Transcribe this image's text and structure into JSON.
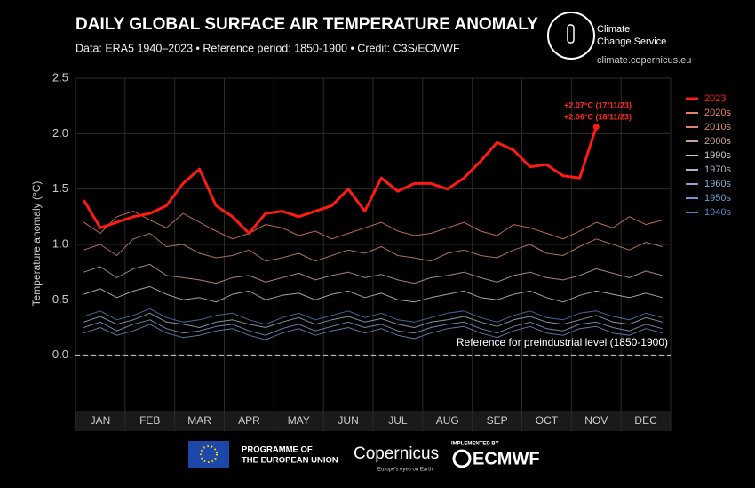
{
  "chart_data": {
    "type": "line",
    "title": "DAILY GLOBAL SURFACE AIR TEMPERATURE ANOMALY",
    "subtitle": "Data: ERA5 1940–2023 • Reference period: 1850-1900 • Credit: C3S/ECMWF",
    "y_label": "Temperature anomaly (°C)",
    "reference_label": "Reference for preindustrial level (1850-1900)",
    "annotations": [
      "+2.07°C (17/11/23)",
      "+2.06°C (18/11/23)"
    ],
    "categories": [
      null,
      "JAN",
      null,
      null,
      "FEB",
      null,
      null,
      "MAR",
      null,
      null,
      "APR",
      null,
      null,
      "MAY",
      null,
      null,
      "JUN",
      null,
      null,
      "JUL",
      null,
      null,
      "AUG",
      null,
      null,
      "SEP",
      null,
      null,
      "OCT",
      null,
      null,
      "NOV",
      null,
      null,
      "DEC",
      null
    ],
    "ylim": [
      -0.5,
      2.5
    ],
    "yticks": [
      {
        "value": 0,
        "label": "0.0"
      },
      0.5,
      {
        "value": 1,
        "label": "1.0"
      },
      1.5,
      {
        "value": 2,
        "label": "2.0"
      },
      2.5
    ],
    "grid": true,
    "legend": "right",
    "series": [
      {
        "name": "2023",
        "color": "#ff1a14",
        "values": [
          1.4,
          1.15,
          1.2,
          1.25,
          1.28,
          1.35,
          1.55,
          1.68,
          1.35,
          1.25,
          1.1,
          1.28,
          1.3,
          1.25,
          1.3,
          1.35,
          1.5,
          1.3,
          1.6,
          1.48,
          1.55,
          1.55,
          1.5,
          1.6,
          1.75,
          1.92,
          1.85,
          1.7,
          1.72,
          1.62,
          1.6,
          2.06,
          null,
          null,
          null,
          null
        ]
      },
      {
        "name": "2020s",
        "color": "#e8826a",
        "values": [
          1.2,
          1.1,
          1.25,
          1.3,
          1.22,
          1.15,
          1.28,
          1.2,
          1.12,
          1.05,
          1.1,
          1.18,
          1.15,
          1.08,
          1.12,
          1.05,
          1.1,
          1.15,
          1.2,
          1.12,
          1.08,
          1.1,
          1.15,
          1.2,
          1.12,
          1.08,
          1.18,
          1.15,
          1.1,
          1.05,
          1.12,
          1.2,
          1.15,
          1.25,
          1.18,
          1.22
        ]
      },
      {
        "name": "2010s",
        "color": "#d48a72",
        "values": [
          0.95,
          1.0,
          0.9,
          1.05,
          1.1,
          0.98,
          1.0,
          0.92,
          0.88,
          0.9,
          0.95,
          0.85,
          0.88,
          0.92,
          0.85,
          0.9,
          0.95,
          0.92,
          0.98,
          0.9,
          0.88,
          0.85,
          0.92,
          0.95,
          0.9,
          0.88,
          0.95,
          1.0,
          0.92,
          0.9,
          0.98,
          1.05,
          1.0,
          0.95,
          1.02,
          0.98
        ]
      },
      {
        "name": "2000s",
        "color": "#c9a493",
        "values": [
          0.75,
          0.8,
          0.7,
          0.78,
          0.82,
          0.72,
          0.7,
          0.68,
          0.65,
          0.7,
          0.72,
          0.66,
          0.7,
          0.74,
          0.68,
          0.72,
          0.75,
          0.7,
          0.73,
          0.68,
          0.65,
          0.7,
          0.72,
          0.75,
          0.7,
          0.66,
          0.72,
          0.75,
          0.7,
          0.68,
          0.72,
          0.78,
          0.74,
          0.7,
          0.76,
          0.72
        ]
      },
      {
        "name": "1990s",
        "color": "#cfc8c4",
        "values": [
          0.55,
          0.6,
          0.52,
          0.58,
          0.62,
          0.55,
          0.5,
          0.52,
          0.48,
          0.55,
          0.58,
          0.5,
          0.54,
          0.56,
          0.5,
          0.55,
          0.58,
          0.52,
          0.56,
          0.5,
          0.48,
          0.52,
          0.55,
          0.58,
          0.52,
          0.5,
          0.55,
          0.58,
          0.52,
          0.48,
          0.54,
          0.58,
          0.55,
          0.52,
          0.56,
          0.52
        ]
      },
      {
        "name": "1970s",
        "color": "#aab4c6",
        "values": [
          0.3,
          0.35,
          0.28,
          0.32,
          0.38,
          0.3,
          0.28,
          0.25,
          0.3,
          0.32,
          0.28,
          0.25,
          0.3,
          0.34,
          0.28,
          0.32,
          0.35,
          0.3,
          0.33,
          0.28,
          0.25,
          0.3,
          0.32,
          0.35,
          0.3,
          0.26,
          0.32,
          0.35,
          0.3,
          0.28,
          0.32,
          0.36,
          0.3,
          0.28,
          0.34,
          0.3
        ]
      },
      {
        "name": "1960s",
        "color": "#88a8d0",
        "values": [
          0.25,
          0.3,
          0.22,
          0.28,
          0.32,
          0.24,
          0.2,
          0.22,
          0.26,
          0.28,
          0.22,
          0.18,
          0.24,
          0.28,
          0.22,
          0.26,
          0.3,
          0.25,
          0.28,
          0.22,
          0.2,
          0.25,
          0.28,
          0.3,
          0.24,
          0.2,
          0.26,
          0.3,
          0.24,
          0.22,
          0.28,
          0.3,
          0.25,
          0.22,
          0.28,
          0.24
        ]
      },
      {
        "name": "1950s",
        "color": "#6a98d0",
        "values": [
          0.2,
          0.25,
          0.18,
          0.22,
          0.28,
          0.2,
          0.16,
          0.18,
          0.22,
          0.24,
          0.18,
          0.14,
          0.2,
          0.24,
          0.18,
          0.22,
          0.25,
          0.2,
          0.24,
          0.18,
          0.15,
          0.2,
          0.24,
          0.26,
          0.2,
          0.16,
          0.22,
          0.26,
          0.2,
          0.18,
          0.24,
          0.26,
          0.2,
          0.18,
          0.24,
          0.2
        ]
      },
      {
        "name": "1940s",
        "color": "#4f84c4",
        "values": [
          0.35,
          0.4,
          0.32,
          0.36,
          0.42,
          0.34,
          0.3,
          0.32,
          0.36,
          0.38,
          0.32,
          0.28,
          0.34,
          0.38,
          0.32,
          0.36,
          0.4,
          0.34,
          0.38,
          0.32,
          0.3,
          0.34,
          0.38,
          0.4,
          0.34,
          0.3,
          0.36,
          0.4,
          0.34,
          0.32,
          0.38,
          0.4,
          0.35,
          0.32,
          0.38,
          0.34
        ]
      }
    ]
  },
  "logos": {
    "service": "Climate",
    "service2": "Change Service",
    "url": "climate.copernicus.eu",
    "eu1": "PROGRAMME OF",
    "eu2": "THE EUROPEAN UNION",
    "copernicus": "Copernicus",
    "copernicus_tag": "Europe's eyes on Earth",
    "implemented": "IMPLEMENTED BY",
    "ecmwf": "ECMWF"
  }
}
